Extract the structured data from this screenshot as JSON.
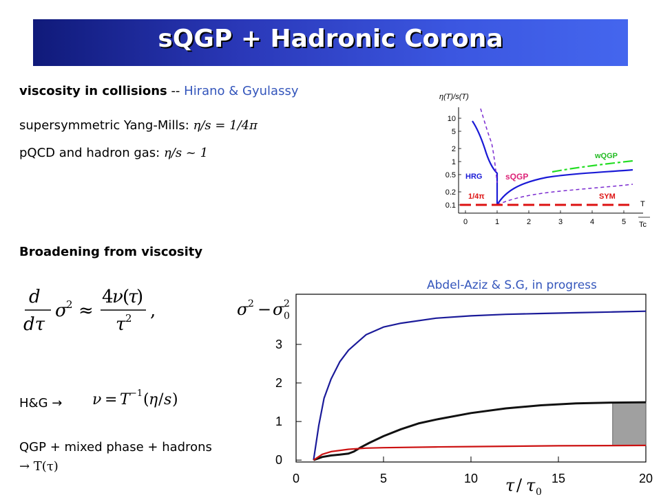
{
  "title": "sQGP + Hadronic Corona",
  "section1": {
    "heading": "viscosity in collisions",
    "sep": " -- ",
    "authors": "Hirano & Gyulassy",
    "line1_label": "supersymmetric Yang-Mills:",
    "line1_formula": "η/s = 1/4π",
    "line2_label": "pQCD and hadron gas:",
    "line2_formula": "η/s ~ 1"
  },
  "section2": {
    "heading": "Broadening from viscosity",
    "hg_label": "H&G →",
    "qgp_label": "QGP + mixed phase + hadrons",
    "qgp_arrow": "→ T(τ)"
  },
  "inset": {
    "ylabel": "η(T)/s(T)",
    "yticks": [
      "10",
      "5",
      "2",
      "1",
      "0.5",
      "0.2",
      "0.1"
    ],
    "xticks": [
      "0",
      "1",
      "2",
      "3",
      "4",
      "5"
    ],
    "xlabel_top": "T",
    "xlabel_bot": "Tc",
    "labels": {
      "hrg": "HRG",
      "sqgp": "sQGP",
      "wqgp": "wQGP",
      "sym": "SYM",
      "quarter": "1/4π"
    },
    "colors": {
      "blue": "#1a1ad6",
      "purple": "#7a2ad0",
      "green": "#22dd22",
      "red": "#dd1111",
      "pink": "#dd2277"
    }
  },
  "chart_data": {
    "type": "line",
    "credit": "Abdel-Aziz & S.G, in progress",
    "ylabel": "σ² − σ₀²",
    "xlabel": "τ / τ₀",
    "xlim": [
      0,
      20
    ],
    "ylim": [
      -0.05,
      4.3
    ],
    "xticks": [
      "0",
      "5",
      "10",
      "15",
      "20"
    ],
    "yticks": [
      "0",
      "1",
      "2",
      "3"
    ],
    "series": [
      {
        "color": "#1a1a99",
        "x": [
          1,
          1.3,
          1.6,
          2,
          2.5,
          3,
          3.5,
          4,
          5,
          6,
          8,
          10,
          12,
          14,
          16,
          18,
          20
        ],
        "y": [
          0,
          0.9,
          1.6,
          2.1,
          2.55,
          2.85,
          3.05,
          3.25,
          3.45,
          3.55,
          3.68,
          3.74,
          3.78,
          3.8,
          3.82,
          3.84,
          3.86
        ]
      },
      {
        "color": "#111111",
        "x": [
          1,
          1.5,
          2,
          2.5,
          3,
          3.3,
          3.7,
          4.2,
          5,
          6,
          7,
          8,
          10,
          12,
          14,
          16,
          18,
          20
        ],
        "y": [
          0,
          0.08,
          0.12,
          0.14,
          0.17,
          0.22,
          0.33,
          0.45,
          0.62,
          0.8,
          0.95,
          1.05,
          1.22,
          1.34,
          1.42,
          1.47,
          1.49,
          1.5
        ]
      },
      {
        "color": "#cc1111",
        "x": [
          1,
          1.5,
          2,
          3,
          4,
          5,
          8,
          10,
          15,
          20
        ],
        "y": [
          0,
          0.15,
          0.22,
          0.28,
          0.31,
          0.32,
          0.34,
          0.35,
          0.37,
          0.38
        ]
      }
    ],
    "band": {
      "color": "#a0a0a0",
      "x": [
        18.1,
        20
      ],
      "y": [
        0.38,
        1.5
      ]
    }
  }
}
